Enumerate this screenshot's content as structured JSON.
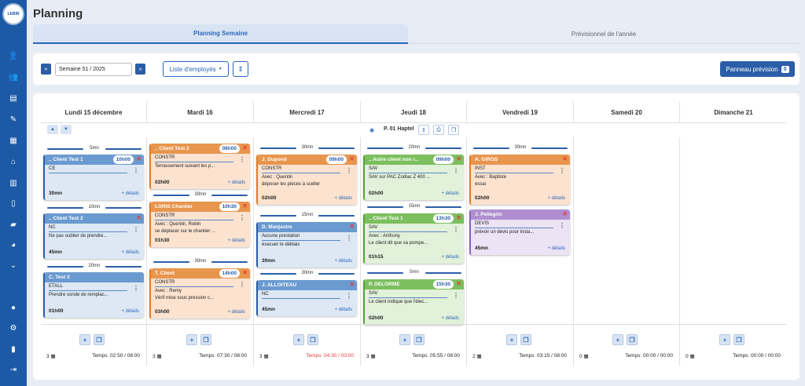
{
  "app": {
    "title": "Planning",
    "logo_text": "LEBIN"
  },
  "sidebar": {
    "icons": [
      "users-plus-icon",
      "team-icon",
      "document-icon",
      "edit-icon",
      "calendar-icon",
      "store-icon",
      "chart-icon",
      "book-icon",
      "truck-icon",
      "pie-chart-icon",
      "chevron-down-icon",
      "user-icon",
      "gear-icon",
      "phone-icon",
      "logout-icon"
    ]
  },
  "tabs": {
    "week": "Planning Semaine",
    "year": "Prévisionnel de l'année"
  },
  "toolbar": {
    "prev": "«",
    "next": "»",
    "week_value": "Semaine 51 / 2025",
    "employees": "Liste d'employés",
    "panneau": "Panneau prévision",
    "panneau_count": "0"
  },
  "days": [
    "Lundi 15 décembre",
    "Mardi 16",
    "Mercredi 17",
    "Jeudi 18",
    "Vendredi 19",
    "Samedi 20",
    "Dimanche 21"
  ],
  "plan_label": "P. 01 Haptel",
  "details_label": "+ détails",
  "gaps": {
    "mon": [
      "5mn",
      "10mn",
      "20mn"
    ],
    "tue": [
      "30mn",
      "30mn"
    ],
    "wed": [
      "30mn",
      "15mn",
      "30mn"
    ],
    "thu": [
      "20mn",
      "15mn",
      "5mn"
    ],
    "fri": [
      "30mn"
    ]
  },
  "cards": {
    "mon": [
      {
        "title": ".. Client Test 1",
        "time": "10h00",
        "code": "CE",
        "l1": "",
        "l2": "",
        "dur": "30mn"
      },
      {
        "title": ".. Client Test 2",
        "time": "",
        "code": "NC",
        "l1": "Ne pas oublier de prendre...",
        "l2": "",
        "dur": "45mn"
      },
      {
        "title": "C. Test 3",
        "time": "",
        "code": "ETALL",
        "l1": "Prendre sonde de remplac...",
        "l2": "",
        "dur": "01h00"
      }
    ],
    "tue": [
      {
        "title": ".. Client Test 2",
        "time": "08h00",
        "code": "CONSTR",
        "l1": "Terrassement suivant les p...",
        "l2": "",
        "dur": "02h00"
      },
      {
        "title": "LORIS Chantier",
        "time": "10h30",
        "code": "CONSTR",
        "l1": "Avec : Quentin, Robin",
        "l2": "se déplacer sur le chantier ...",
        "dur": "01h30"
      },
      {
        "title": "T. Client",
        "time": "14h00",
        "code": "CONSTR",
        "l1": "Avec : Remy",
        "l2": "Vérif mise sous pression c...",
        "dur": "03h00"
      }
    ],
    "wed": [
      {
        "title": "J. Dupond",
        "time": "09h00",
        "code": "CONSTR",
        "l1": "Avec : Quentin",
        "l2": "déposer les pièces à sceller",
        "dur": "02h00"
      },
      {
        "title": "D. Manjastre",
        "time": "",
        "code": "Aucune prestation",
        "l1": "évacuer le déblais",
        "l2": "",
        "dur": "30mn"
      },
      {
        "title": "J. ALLOITEAU",
        "time": "",
        "code": "NC",
        "l1": "",
        "l2": "",
        "dur": "45mn"
      }
    ],
    "thu": [
      {
        "title": ".. Autre client non r...",
        "time": "09h00",
        "code": "SAV",
        "l1": "SAV sur PAC Zodiac Z 400 ...",
        "l2": "",
        "dur": "02h00"
      },
      {
        "title": ".. Client Test 1",
        "time": "13h30",
        "code": "SAV",
        "l1": "Avec : Anthony",
        "l2": "Le client dit que sa pompe...",
        "dur": "01h15"
      },
      {
        "title": "P. DELORME",
        "time": "15h30",
        "code": "SAV",
        "l1": "Le client indique que l'élec...",
        "l2": "",
        "dur": "02h00"
      }
    ],
    "fri": [
      {
        "title": "A. GIROS",
        "time": "",
        "code": "INST",
        "l1": "Avec : Baptiste",
        "l2": "essai",
        "dur": "02h00"
      },
      {
        "title": "J. Pellegrin",
        "time": "",
        "code": "DEVIS",
        "l1": "prévoir un devis pour insta...",
        "l2": "",
        "dur": "45mn"
      }
    ]
  },
  "footer": [
    {
      "count": "3",
      "temps": "Temps: 02:50 / 08:00",
      "over": false
    },
    {
      "count": "3",
      "temps": "Temps: 07:30 / 08:00",
      "over": false
    },
    {
      "count": "3",
      "temps": "Temps: 04:30 / 03:00",
      "over": true
    },
    {
      "count": "3",
      "temps": "Temps: 05:55 / 08:00",
      "over": false
    },
    {
      "count": "2",
      "temps": "Temps: 03:15 / 08:00",
      "over": false
    },
    {
      "count": "0",
      "temps": "Temps: 00:00 / 00:00",
      "over": false
    },
    {
      "count": "0",
      "temps": "Temps: 00:00 / 00:00",
      "over": false
    }
  ],
  "colors": {
    "primary": "#2c5ea8",
    "blue": "#6a9ad0",
    "orange": "#e8964e",
    "green": "#7cbf5e",
    "purple": "#b08ed0",
    "danger": "#e23b3b"
  }
}
